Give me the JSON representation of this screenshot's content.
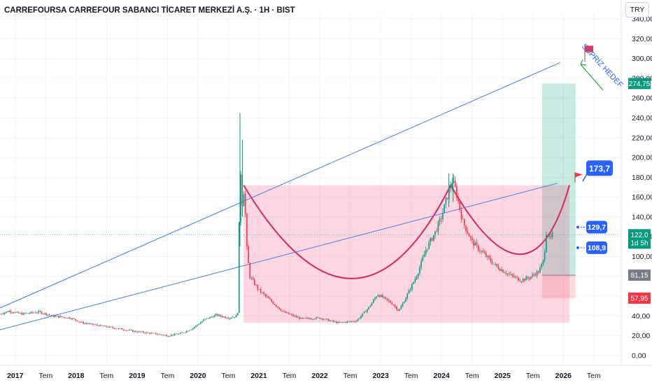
{
  "header": {
    "title": "CARREFOURSA CARREFOUR SABANCI TİCARET MERKEZİ A.Ş. · 1H · BIST",
    "currency": "TRY"
  },
  "chart_data": {
    "type": "candlestick",
    "symbol": "CARREFOURSA",
    "exchange": "BIST",
    "interval": "1H",
    "currency": "TRY",
    "y_ticks": [
      "340,00",
      "320,00",
      "300,00",
      "280,00",
      "260,00",
      "240,00",
      "220,00",
      "200,00",
      "180,00",
      "160,00",
      "140,00",
      "120,00",
      "100,00",
      "80,00",
      "60,00",
      "40,00",
      "20,00",
      "0,00"
    ],
    "y_range": [
      -10,
      345
    ],
    "x_ticks": [
      "2017",
      "Tem",
      "2018",
      "Tem",
      "2019",
      "Tem",
      "2020",
      "Tem",
      "2021",
      "Tem",
      "2022",
      "Tem",
      "2023",
      "Tem",
      "2024",
      "Tem",
      "2025",
      "Tem",
      "2026",
      "Tem"
    ],
    "x_range": [
      2016.75,
      2026.95
    ],
    "price_path": [
      [
        2016.75,
        42
      ],
      [
        2016.9,
        45
      ],
      [
        2017.1,
        42
      ],
      [
        2017.4,
        44
      ],
      [
        2017.6,
        40
      ],
      [
        2017.9,
        38
      ],
      [
        2018.1,
        33
      ],
      [
        2018.4,
        30
      ],
      [
        2018.7,
        27
      ],
      [
        2019.0,
        24
      ],
      [
        2019.3,
        22
      ],
      [
        2019.5,
        20
      ],
      [
        2019.7,
        22
      ],
      [
        2019.9,
        27
      ],
      [
        2020.1,
        36
      ],
      [
        2020.3,
        41
      ],
      [
        2020.5,
        38
      ],
      [
        2020.65,
        40
      ],
      [
        2020.67,
        90
      ],
      [
        2020.69,
        210
      ],
      [
        2020.72,
        150
      ],
      [
        2020.76,
        170
      ],
      [
        2020.8,
        110
      ],
      [
        2020.85,
        80
      ],
      [
        2021.0,
        66
      ],
      [
        2021.2,
        55
      ],
      [
        2021.4,
        44
      ],
      [
        2021.7,
        37
      ],
      [
        2022.0,
        38
      ],
      [
        2022.3,
        33
      ],
      [
        2022.6,
        35
      ],
      [
        2022.8,
        48
      ],
      [
        2022.95,
        62
      ],
      [
        2023.05,
        58
      ],
      [
        2023.2,
        52
      ],
      [
        2023.3,
        45
      ],
      [
        2023.45,
        63
      ],
      [
        2023.6,
        82
      ],
      [
        2023.75,
        108
      ],
      [
        2023.9,
        125
      ],
      [
        2024.0,
        140
      ],
      [
        2024.1,
        162
      ],
      [
        2024.17,
        177
      ],
      [
        2024.22,
        170
      ],
      [
        2024.35,
        135
      ],
      [
        2024.5,
        115
      ],
      [
        2024.7,
        102
      ],
      [
        2024.9,
        90
      ],
      [
        2025.1,
        82
      ],
      [
        2025.3,
        76
      ],
      [
        2025.45,
        79
      ],
      [
        2025.6,
        85
      ],
      [
        2025.68,
        97
      ],
      [
        2025.72,
        126
      ],
      [
        2025.78,
        116
      ],
      [
        2025.82,
        122
      ]
    ],
    "last_price": "122,0",
    "countdown": "1d 5h",
    "price_labels": [
      {
        "text": "274,75",
        "value": 274.75,
        "color": "#089981"
      },
      {
        "text": "81,15",
        "value": 81.15,
        "color": "#787b86"
      },
      {
        "text": "57,95",
        "value": 57.95,
        "color": "#f23645"
      }
    ],
    "annotations": {
      "cup_and_handle_top": 172,
      "cup_left": {
        "x": 2020.75,
        "y": 172
      },
      "cup_bottom": {
        "x": 2022.65,
        "y": 33
      },
      "cup_right": {
        "x": 2024.15,
        "y": 172
      },
      "handle_bottom": {
        "x": 2025.45,
        "y": 75
      },
      "handle_right": {
        "x": 2026.1,
        "y": 172
      },
      "target_callout": "173,7",
      "callout_129": "129,7",
      "callout_108": "108,9",
      "surprise_label": "SÜPRİZ HEDEF",
      "upper_trendline": [
        [
          2016.75,
          48
        ],
        [
          2025.95,
          296
        ]
      ],
      "lower_trendline": [
        [
          2016.75,
          26
        ],
        [
          2025.9,
          174
        ]
      ],
      "long_position": {
        "x_start": 2025.65,
        "x_end": 2026.2,
        "entry": 81.15,
        "target": 274.75,
        "stop": 57.95
      }
    }
  }
}
